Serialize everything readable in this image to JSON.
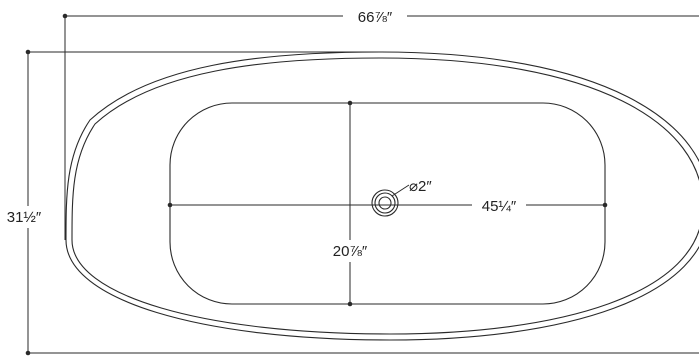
{
  "dimensions": {
    "overall_length": "66⅞″",
    "overall_width": "31½″",
    "basin_length": "45¼″",
    "basin_width": "20⅞″",
    "drain_diameter": "⌀2″"
  },
  "colors": {
    "line": "#2a2a2a",
    "background": "#ffffff"
  }
}
